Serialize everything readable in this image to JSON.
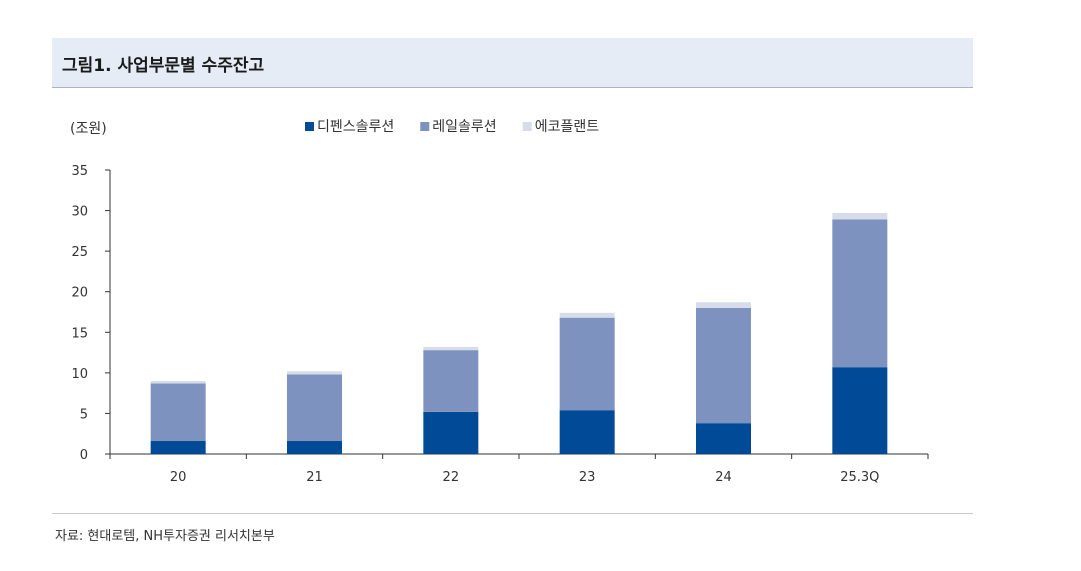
{
  "figure": {
    "title": "그림1. 사업부문별 수주잔고",
    "source": "자료: 현대로템, NH투자증권 리서치본부"
  },
  "chart_data": {
    "type": "bar",
    "stacked": true,
    "unit_label": "(조원)",
    "categories": [
      "20",
      "21",
      "22",
      "23",
      "24",
      "25.3Q"
    ],
    "series": [
      {
        "name": "디펜스솔루션",
        "color": "#004a98",
        "values": [
          1.6,
          1.6,
          5.2,
          5.4,
          3.8,
          10.7
        ]
      },
      {
        "name": "레일솔루션",
        "color": "#7e92c0",
        "values": [
          7.1,
          8.2,
          7.6,
          11.4,
          14.2,
          18.2
        ]
      },
      {
        "name": "에코플랜트",
        "color": "#d6dde8",
        "values": [
          0.3,
          0.4,
          0.4,
          0.6,
          0.7,
          0.8
        ]
      }
    ],
    "ylim": [
      0,
      35
    ],
    "yticks": [
      0,
      5,
      10,
      15,
      20,
      25,
      30,
      35
    ],
    "legend_position": "top",
    "grid": false
  }
}
